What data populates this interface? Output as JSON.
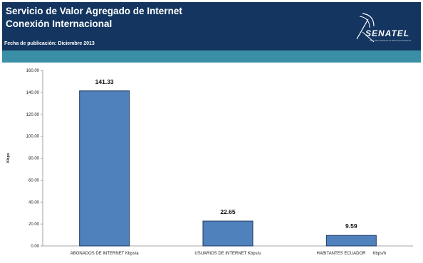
{
  "header": {
    "title_line1": "Servicio de Valor Agregado de Internet",
    "title_line2": "Conexión Internacional",
    "pub_date": "Fecha de publicación: Diciembre 2013",
    "logo_text": "SENATEL",
    "logo_subtext": "Secretaría Nacional de Telecomunicaciones"
  },
  "colors": {
    "header_bg": "#13355f",
    "band": "#3a8fa6",
    "bar_fill": "#4f81bd",
    "bar_stroke": "#1f3a5f"
  },
  "chart_data": {
    "type": "bar",
    "title": "",
    "ylabel": "Kbps",
    "xlabel": "",
    "ylim": [
      0,
      160
    ],
    "yticks": [
      "0.00",
      "20.00",
      "40.00",
      "60.00",
      "80.00",
      "100.00",
      "120.00",
      "140.00",
      "160.00"
    ],
    "categories": [
      "ABONADOS DE INTERNET Kbps/a",
      "USUARIOS DE INTERNET Kbps/u",
      "HABITANTES ECUADOR      Kbps/h"
    ],
    "values": [
      141.33,
      22.65,
      9.59
    ],
    "value_labels": [
      "141.33",
      "22.65",
      "9.59"
    ],
    "grid": false,
    "legend": "none"
  }
}
